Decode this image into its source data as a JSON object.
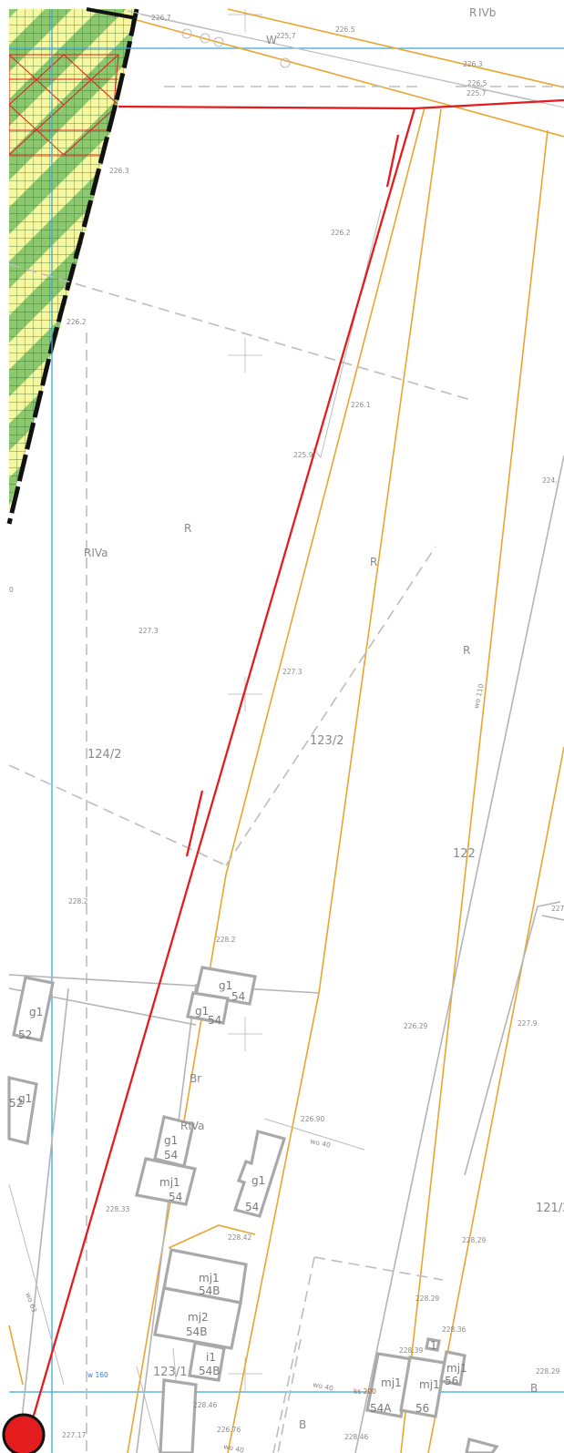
{
  "colors": {
    "parcel_line": "#e8a630",
    "cadastral_line": "#b4b4b4",
    "plan_boundary": "#e31d1d",
    "grid_line": "#39a7de",
    "hatch_green": "#8cc86e",
    "hatch_yellow": "#f7f7a0",
    "marker_red": "#e31d1d"
  },
  "labels": {
    "top_plot": "R",
    "top_plot_class": "IVb",
    "w_top": "W",
    "h_225_7a": "225,7",
    "h_226_7": "226,7",
    "h_226_5": "226.5",
    "h_226_3a": "226.3",
    "h_226_5b": "226.5",
    "h_225_7b": "225.7",
    "h_226_3b": "226.3",
    "h_226_2a": "226.2",
    "h_226_2b": "226.2",
    "h_226_1": "226.1",
    "h_225_x": "225.9",
    "h_227_3a": "227.3",
    "h_227_3b": "227.3",
    "h_228_2a": "228.2",
    "h_228_2b": "228.2",
    "h_226_29": "226.29",
    "h_227_9": "227.9",
    "h_228_33": "228.33",
    "h_228_42": "228.42",
    "h_228_29a": "228.29",
    "h_228_29b": "228.29",
    "h_228_36": "228.36",
    "h_228_39": "228.39",
    "h_228_29c": "228.29",
    "h_226_90": "226.90",
    "h_226_76": "226.76",
    "h_228_46a": "228.46",
    "h_228_46b": "228.46",
    "h_227_17": "227.17",
    "h_224_edge": "224.",
    "h_227_edge": "227.",
    "zero_edge": "0",
    "riva_1": "RIVa",
    "r_1": "R",
    "r_2": "R",
    "r_3": "R",
    "parcel_124_2": "124/2",
    "parcel_123_2": "123/2",
    "parcel_122": "122",
    "parcel_121_2": "121/2",
    "parcel_123_1": "123/1",
    "br": "Br",
    "riva_2": "RIVa",
    "b_1": "B",
    "b_2": "B",
    "wo_110": "wo 110",
    "wo_40a": "wo 40",
    "wo_40b": "wo 40",
    "wo_40c": "wo 40",
    "wo_63": "wo 63",
    "w_160": "w 160",
    "ks_200": "ks 200",
    "bld_g1_54a_t": "g1",
    "bld_g1_54a_n": "54",
    "bld_g1_54b_t": "g1",
    "bld_g1_54b_n": "54",
    "bld_g1_52_t": "g1",
    "bld_g1_52_n": "52",
    "bld_g1_edge_t": "g1",
    "bld_g1_edge_n": "52",
    "bld_g1_54c_t": "g1",
    "bld_g1_54c_n": "54",
    "bld_mj1_54_t": "mj1",
    "bld_mj1_54_n": "54",
    "bld_g1_54d_t": "g1",
    "bld_g1_54d_n": "54",
    "bld_mj1_54b_t": "mj1",
    "bld_mj1_54b_n": "54B",
    "bld_mj2_54b_t": "mj2",
    "bld_mj2_54b_n": "54B",
    "bld_i1_54b_t": "i1",
    "bld_i1_54b_n": "54B",
    "bld_mj1_54a_t": "mj1",
    "bld_mj1_54a_n": "54A",
    "bld_mj1_56a_t": "mj1",
    "bld_mj1_56a_n": "56",
    "bld_mj1_56b_t": "mj1",
    "bld_mj1_56b_n": "56",
    "bld_1": "1"
  }
}
